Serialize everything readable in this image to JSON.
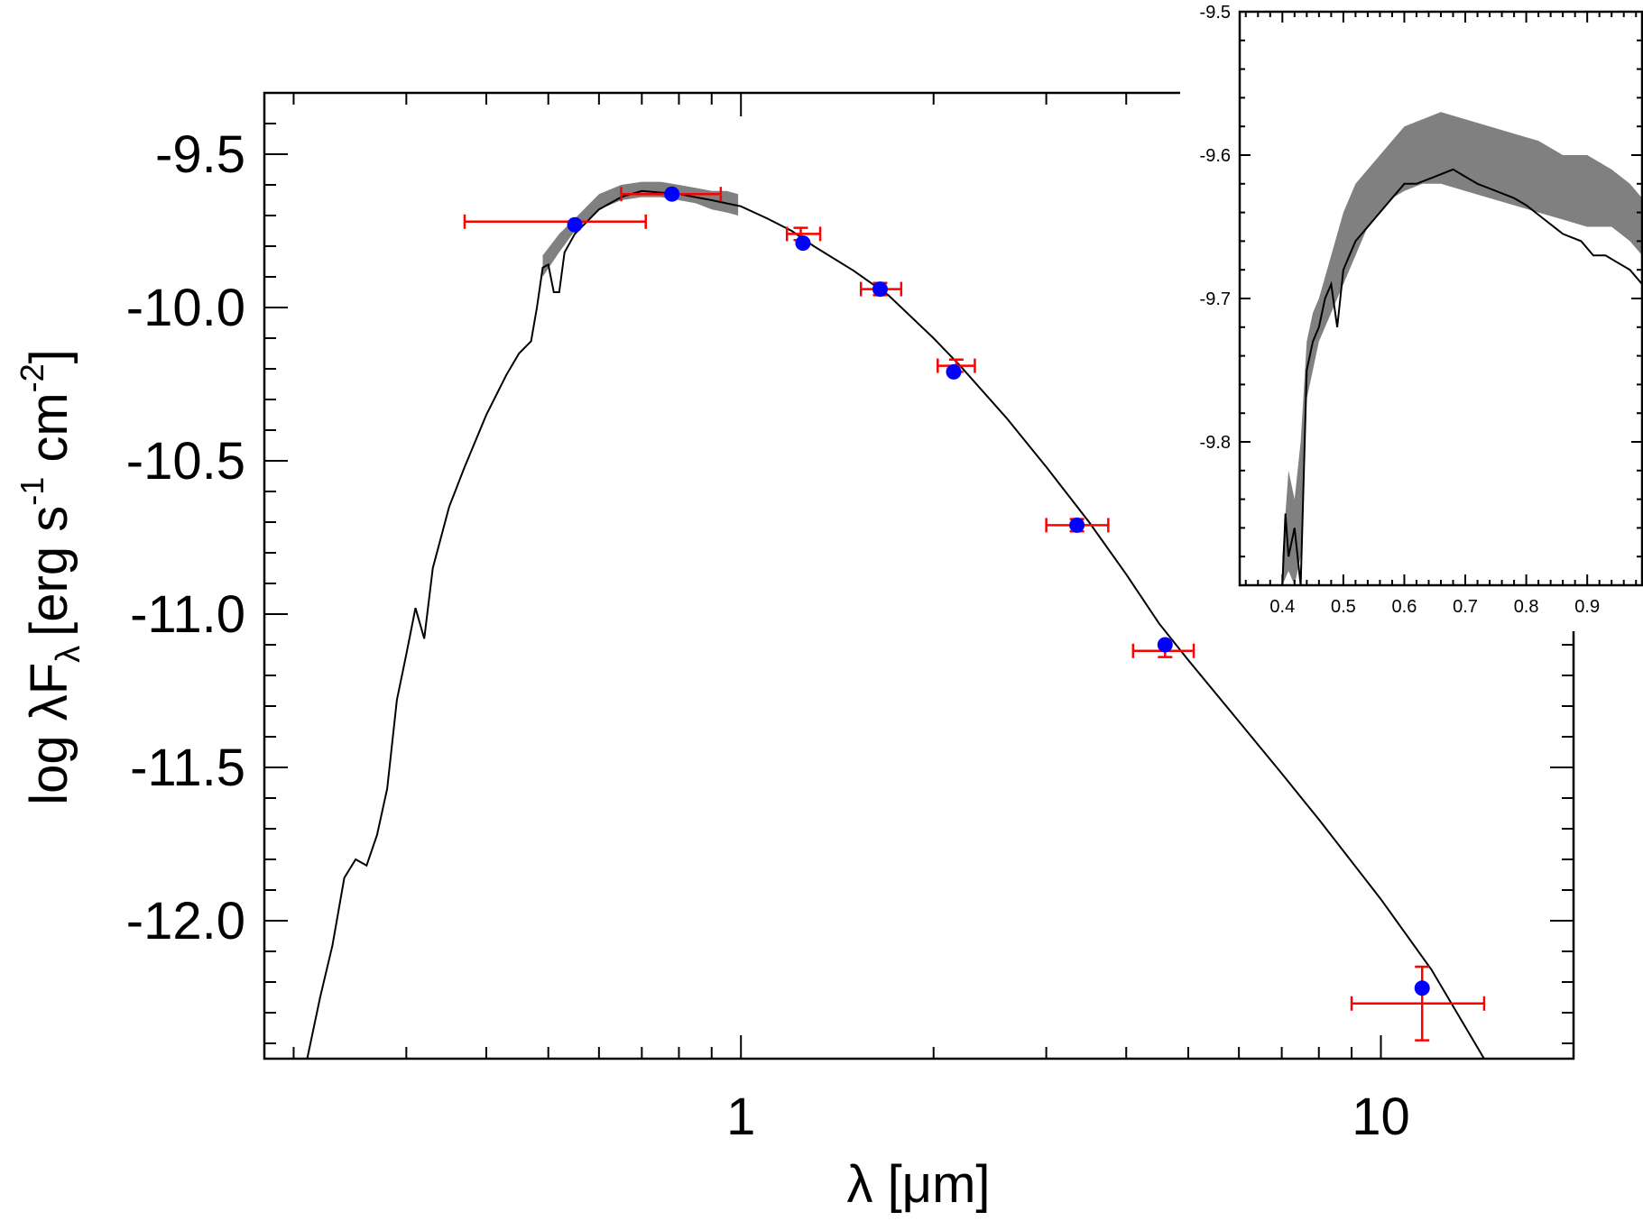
{
  "chart_data": [
    {
      "name": "main",
      "type": "scatter",
      "title": "",
      "xlabel": "λ [μm]",
      "ylabel_main": "log λF",
      "ylabel_sub": "λ",
      "ylabel_units_a": "[erg s",
      "ylabel_sup1": "-1",
      "ylabel_units_b": " cm",
      "ylabel_sup2": "-2",
      "ylabel_close": "]",
      "xscale": "log",
      "xlim": [
        0.18,
        20
      ],
      "ylim": [
        -12.45,
        -9.3
      ],
      "xticks": [
        {
          "v": 1,
          "label": "1"
        },
        {
          "v": 10,
          "label": "10"
        }
      ],
      "yticks": [
        {
          "v": -9.5,
          "label": "-9.5"
        },
        {
          "v": -10.0,
          "label": "-10.0"
        },
        {
          "v": -10.5,
          "label": "-10.5"
        },
        {
          "v": -11.0,
          "label": "-11.0"
        },
        {
          "v": -11.5,
          "label": "-11.5"
        },
        {
          "v": -12.0,
          "label": "-12.0"
        }
      ],
      "model_spectrum": [
        [
          0.21,
          -12.47
        ],
        [
          0.22,
          -12.25
        ],
        [
          0.23,
          -12.08
        ],
        [
          0.24,
          -11.86
        ],
        [
          0.25,
          -11.8
        ],
        [
          0.26,
          -11.82
        ],
        [
          0.27,
          -11.72
        ],
        [
          0.28,
          -11.57
        ],
        [
          0.29,
          -11.28
        ],
        [
          0.3,
          -11.13
        ],
        [
          0.31,
          -10.98
        ],
        [
          0.32,
          -11.08
        ],
        [
          0.33,
          -10.85
        ],
        [
          0.35,
          -10.65
        ],
        [
          0.37,
          -10.52
        ],
        [
          0.4,
          -10.35
        ],
        [
          0.43,
          -10.22
        ],
        [
          0.45,
          -10.15
        ],
        [
          0.47,
          -10.11
        ],
        [
          0.48,
          -10.0
        ],
        [
          0.49,
          -9.87
        ],
        [
          0.5,
          -9.86
        ],
        [
          0.51,
          -9.95
        ],
        [
          0.52,
          -9.95
        ],
        [
          0.53,
          -9.82
        ],
        [
          0.55,
          -9.76
        ],
        [
          0.6,
          -9.68
        ],
        [
          0.65,
          -9.64
        ],
        [
          0.7,
          -9.62
        ],
        [
          0.8,
          -9.63
        ],
        [
          0.9,
          -9.65
        ],
        [
          1.0,
          -9.67
        ],
        [
          1.1,
          -9.71
        ],
        [
          1.2,
          -9.75
        ],
        [
          1.3,
          -9.8
        ],
        [
          1.5,
          -9.88
        ],
        [
          1.7,
          -9.96
        ],
        [
          2.0,
          -10.1
        ],
        [
          2.2,
          -10.19
        ],
        [
          2.6,
          -10.36
        ],
        [
          3.0,
          -10.52
        ],
        [
          3.5,
          -10.7
        ],
        [
          4.0,
          -10.87
        ],
        [
          4.5,
          -11.03
        ],
        [
          5.0,
          -11.15
        ],
        [
          6.0,
          -11.35
        ],
        [
          7.0,
          -11.52
        ],
        [
          8.0,
          -11.67
        ],
        [
          10.0,
          -11.93
        ],
        [
          12.0,
          -12.16
        ],
        [
          14.5,
          -12.45
        ]
      ],
      "observed_band": {
        "x": [
          0.49,
          0.52,
          0.55,
          0.6,
          0.65,
          0.7,
          0.75,
          0.8,
          0.85,
          0.9,
          0.95,
          0.99
        ],
        "upper": [
          -9.83,
          -9.76,
          -9.71,
          -9.63,
          -9.6,
          -9.59,
          -9.59,
          -9.6,
          -9.61,
          -9.62,
          -9.62,
          -9.63
        ],
        "lower": [
          -9.9,
          -9.82,
          -9.75,
          -9.68,
          -9.65,
          -9.64,
          -9.64,
          -9.65,
          -9.66,
          -9.68,
          -9.69,
          -9.7
        ]
      },
      "synthetic_points": [
        {
          "x": 0.55,
          "y": -9.73
        },
        {
          "x": 0.78,
          "y": -9.63
        },
        {
          "x": 1.25,
          "y": -9.79
        },
        {
          "x": 1.65,
          "y": -9.94
        },
        {
          "x": 2.15,
          "y": -10.21
        },
        {
          "x": 3.35,
          "y": -10.71
        },
        {
          "x": 4.6,
          "y": -11.1
        },
        {
          "x": 11.6,
          "y": -12.22
        }
      ],
      "observed_points": [
        {
          "x": 0.56,
          "x_lo": 0.37,
          "x_hi": 0.71,
          "y": -9.72,
          "y_err": 0.0
        },
        {
          "x": 0.78,
          "x_lo": 0.65,
          "x_hi": 0.93,
          "y": -9.63,
          "y_err": 0.0
        },
        {
          "x": 1.24,
          "x_lo": 1.18,
          "x_hi": 1.33,
          "y": -9.76,
          "y_err": 0.02
        },
        {
          "x": 1.65,
          "x_lo": 1.54,
          "x_hi": 1.78,
          "y": -9.94,
          "y_err": 0.02
        },
        {
          "x": 2.17,
          "x_lo": 2.03,
          "x_hi": 2.32,
          "y": -10.19,
          "y_err": 0.02
        },
        {
          "x": 3.35,
          "x_lo": 3.0,
          "x_hi": 3.75,
          "y": -10.71,
          "y_err": 0.02
        },
        {
          "x": 4.6,
          "x_lo": 4.1,
          "x_hi": 5.1,
          "y": -11.12,
          "y_err": 0.02
        },
        {
          "x": 11.6,
          "x_lo": 9.0,
          "x_hi": 14.5,
          "y": -12.27,
          "y_err": 0.12
        }
      ],
      "colors": {
        "model": "#000000",
        "band": "#808080",
        "synthetic": "#0000ff",
        "observed": "#ff0000"
      }
    },
    {
      "name": "inset",
      "type": "line",
      "title": "",
      "xlabel": "",
      "ylabel": "",
      "xlim": [
        0.33,
        0.99
      ],
      "ylim": [
        -9.9,
        -9.5
      ],
      "xticks": [
        {
          "v": 0.4,
          "label": "0.4"
        },
        {
          "v": 0.5,
          "label": "0.5"
        },
        {
          "v": 0.6,
          "label": "0.6"
        },
        {
          "v": 0.7,
          "label": "0.7"
        },
        {
          "v": 0.8,
          "label": "0.8"
        },
        {
          "v": 0.9,
          "label": "0.9"
        }
      ],
      "yticks": [
        {
          "v": -9.5,
          "label": "-9.5"
        },
        {
          "v": -9.6,
          "label": "-9.6"
        },
        {
          "v": -9.7,
          "label": "-9.7"
        },
        {
          "v": -9.8,
          "label": "-9.8"
        }
      ],
      "model_spectrum": [
        [
          0.4,
          -9.9
        ],
        [
          0.405,
          -9.85
        ],
        [
          0.41,
          -9.88
        ],
        [
          0.42,
          -9.86
        ],
        [
          0.43,
          -9.9
        ],
        [
          0.44,
          -9.75
        ],
        [
          0.45,
          -9.73
        ],
        [
          0.46,
          -9.72
        ],
        [
          0.47,
          -9.7
        ],
        [
          0.48,
          -9.69
        ],
        [
          0.49,
          -9.72
        ],
        [
          0.5,
          -9.68
        ],
        [
          0.51,
          -9.67
        ],
        [
          0.52,
          -9.66
        ],
        [
          0.54,
          -9.65
        ],
        [
          0.56,
          -9.64
        ],
        [
          0.58,
          -9.63
        ],
        [
          0.6,
          -9.62
        ],
        [
          0.62,
          -9.62
        ],
        [
          0.65,
          -9.615
        ],
        [
          0.68,
          -9.61
        ],
        [
          0.7,
          -9.615
        ],
        [
          0.72,
          -9.62
        ],
        [
          0.75,
          -9.625
        ],
        [
          0.78,
          -9.63
        ],
        [
          0.8,
          -9.635
        ],
        [
          0.83,
          -9.645
        ],
        [
          0.86,
          -9.655
        ],
        [
          0.89,
          -9.66
        ],
        [
          0.91,
          -9.67
        ],
        [
          0.93,
          -9.67
        ],
        [
          0.95,
          -9.675
        ],
        [
          0.97,
          -9.68
        ],
        [
          0.99,
          -9.69
        ]
      ],
      "observed_band": {
        "x": [
          0.4,
          0.41,
          0.42,
          0.43,
          0.44,
          0.45,
          0.46,
          0.48,
          0.5,
          0.52,
          0.54,
          0.56,
          0.58,
          0.6,
          0.63,
          0.66,
          0.7,
          0.74,
          0.78,
          0.82,
          0.86,
          0.9,
          0.94,
          0.97,
          0.99
        ],
        "upper": [
          -9.88,
          -9.82,
          -9.84,
          -9.8,
          -9.73,
          -9.71,
          -9.7,
          -9.67,
          -9.64,
          -9.62,
          -9.61,
          -9.6,
          -9.59,
          -9.58,
          -9.575,
          -9.57,
          -9.575,
          -9.58,
          -9.585,
          -9.59,
          -9.6,
          -9.6,
          -9.61,
          -9.62,
          -9.63
        ],
        "lower": [
          -9.9,
          -9.89,
          -9.9,
          -9.88,
          -9.77,
          -9.75,
          -9.73,
          -9.71,
          -9.69,
          -9.67,
          -9.65,
          -9.64,
          -9.63,
          -9.625,
          -9.62,
          -9.62,
          -9.625,
          -9.63,
          -9.635,
          -9.64,
          -9.645,
          -9.65,
          -9.65,
          -9.66,
          -9.67
        ]
      }
    }
  ]
}
